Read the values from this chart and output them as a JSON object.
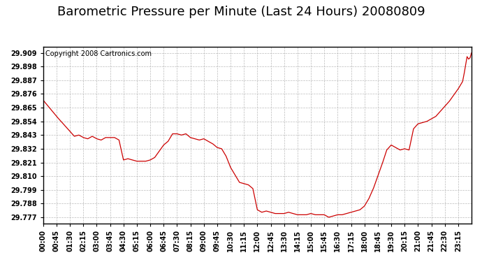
{
  "title": "Barometric Pressure per Minute (Last 24 Hours) 20080809",
  "copyright": "Copyright 2008 Cartronics.com",
  "line_color": "#cc0000",
  "background_color": "#ffffff",
  "grid_color": "#aaaaaa",
  "title_fontsize": 13,
  "copyright_fontsize": 7,
  "yticks": [
    29.777,
    29.788,
    29.799,
    29.81,
    29.821,
    29.832,
    29.843,
    29.854,
    29.865,
    29.876,
    29.887,
    29.898,
    29.909
  ],
  "ylim": [
    29.772,
    29.914
  ],
  "xtick_labels": [
    "00:00",
    "00:45",
    "01:30",
    "02:15",
    "03:00",
    "03:45",
    "04:30",
    "05:15",
    "06:00",
    "06:45",
    "07:30",
    "08:15",
    "09:00",
    "09:45",
    "10:30",
    "11:15",
    "12:00",
    "12:45",
    "13:30",
    "14:15",
    "15:00",
    "15:45",
    "16:30",
    "17:15",
    "18:00",
    "18:45",
    "19:30",
    "20:15",
    "21:00",
    "21:45",
    "22:30",
    "23:15"
  ],
  "key_points": [
    [
      0,
      29.871
    ],
    [
      45,
      29.858
    ],
    [
      90,
      29.846
    ],
    [
      105,
      29.842
    ],
    [
      120,
      29.843
    ],
    [
      135,
      29.841
    ],
    [
      150,
      29.84
    ],
    [
      165,
      29.842
    ],
    [
      180,
      29.84
    ],
    [
      195,
      29.839
    ],
    [
      210,
      29.841
    ],
    [
      225,
      29.841
    ],
    [
      240,
      29.841
    ],
    [
      255,
      29.839
    ],
    [
      270,
      29.823
    ],
    [
      285,
      29.824
    ],
    [
      300,
      29.823
    ],
    [
      315,
      29.822
    ],
    [
      330,
      29.822
    ],
    [
      345,
      29.822
    ],
    [
      360,
      29.823
    ],
    [
      375,
      29.825
    ],
    [
      390,
      29.83
    ],
    [
      405,
      29.835
    ],
    [
      420,
      29.838
    ],
    [
      435,
      29.844
    ],
    [
      450,
      29.844
    ],
    [
      465,
      29.843
    ],
    [
      480,
      29.844
    ],
    [
      495,
      29.841
    ],
    [
      510,
      29.84
    ],
    [
      525,
      29.839
    ],
    [
      540,
      29.84
    ],
    [
      555,
      29.838
    ],
    [
      570,
      29.836
    ],
    [
      585,
      29.833
    ],
    [
      600,
      29.832
    ],
    [
      615,
      29.826
    ],
    [
      630,
      29.817
    ],
    [
      645,
      29.811
    ],
    [
      660,
      29.805
    ],
    [
      675,
      29.804
    ],
    [
      690,
      29.803
    ],
    [
      705,
      29.8
    ],
    [
      720,
      29.783
    ],
    [
      735,
      29.781
    ],
    [
      750,
      29.782
    ],
    [
      765,
      29.781
    ],
    [
      780,
      29.78
    ],
    [
      795,
      29.78
    ],
    [
      810,
      29.78
    ],
    [
      825,
      29.781
    ],
    [
      840,
      29.78
    ],
    [
      855,
      29.779
    ],
    [
      870,
      29.779
    ],
    [
      885,
      29.779
    ],
    [
      900,
      29.78
    ],
    [
      915,
      29.779
    ],
    [
      930,
      29.779
    ],
    [
      945,
      29.779
    ],
    [
      960,
      29.777
    ],
    [
      975,
      29.778
    ],
    [
      990,
      29.779
    ],
    [
      1005,
      29.779
    ],
    [
      1020,
      29.78
    ],
    [
      1035,
      29.781
    ],
    [
      1050,
      29.782
    ],
    [
      1065,
      29.783
    ],
    [
      1080,
      29.786
    ],
    [
      1095,
      29.792
    ],
    [
      1110,
      29.8
    ],
    [
      1125,
      29.81
    ],
    [
      1140,
      29.82
    ],
    [
      1155,
      29.831
    ],
    [
      1170,
      29.835
    ],
    [
      1185,
      29.833
    ],
    [
      1200,
      29.831
    ],
    [
      1215,
      29.832
    ],
    [
      1230,
      29.831
    ],
    [
      1245,
      29.848
    ],
    [
      1260,
      29.852
    ],
    [
      1275,
      29.853
    ],
    [
      1290,
      29.854
    ],
    [
      1305,
      29.856
    ],
    [
      1320,
      29.858
    ],
    [
      1335,
      29.862
    ],
    [
      1350,
      29.866
    ],
    [
      1365,
      29.87
    ],
    [
      1380,
      29.875
    ],
    [
      1395,
      29.88
    ],
    [
      1410,
      29.886
    ],
    [
      1415,
      29.892
    ],
    [
      1425,
      29.906
    ],
    [
      1430,
      29.904
    ],
    [
      1435,
      29.905
    ],
    [
      1440,
      29.909
    ]
  ]
}
